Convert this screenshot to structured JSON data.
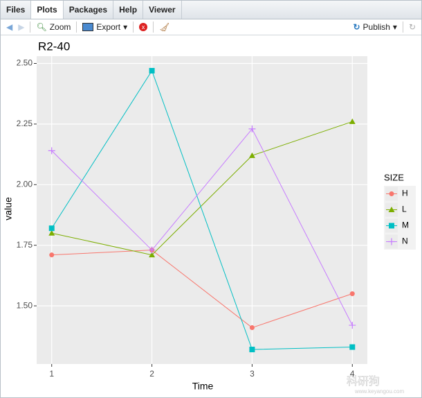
{
  "tabs": [
    "Files",
    "Plots",
    "Packages",
    "Help",
    "Viewer"
  ],
  "toolbar": {
    "zoom": "Zoom",
    "export": "Export",
    "publish": "Publish"
  },
  "watermark": {
    "name": "科研狗",
    "url": "www.keyangou.com"
  },
  "chart_data": {
    "type": "line",
    "title": "R2-40",
    "x_label": "Time",
    "y_label": "value",
    "x": [
      1,
      2,
      3,
      4
    ],
    "xlim": [
      0.85,
      4.15
    ],
    "xticks": [
      1,
      2,
      3,
      4
    ],
    "ylim": [
      1.26,
      2.53
    ],
    "yticks": [
      {
        "value": 1.5,
        "label": "1.50"
      },
      {
        "value": 1.75,
        "label": "1.75"
      },
      {
        "value": 2.0,
        "label": "2.00"
      },
      {
        "value": 2.25,
        "label": "2.25"
      },
      {
        "value": 2.5,
        "label": "2.50"
      }
    ],
    "grid": true,
    "legend_title": "SIZE",
    "legend_position": "right",
    "series": [
      {
        "name": "H",
        "color": "#F8766D",
        "marker": "circle",
        "values": [
          1.71,
          1.73,
          1.41,
          1.55
        ]
      },
      {
        "name": "L",
        "color": "#7CAE00",
        "marker": "triangle",
        "values": [
          1.8,
          1.71,
          2.12,
          2.26
        ]
      },
      {
        "name": "M",
        "color": "#00BFC4",
        "marker": "square",
        "values": [
          1.82,
          2.47,
          1.32,
          1.33
        ]
      },
      {
        "name": "N",
        "color": "#C77CFF",
        "marker": "plus",
        "values": [
          2.14,
          1.73,
          2.23,
          1.42
        ]
      }
    ]
  }
}
